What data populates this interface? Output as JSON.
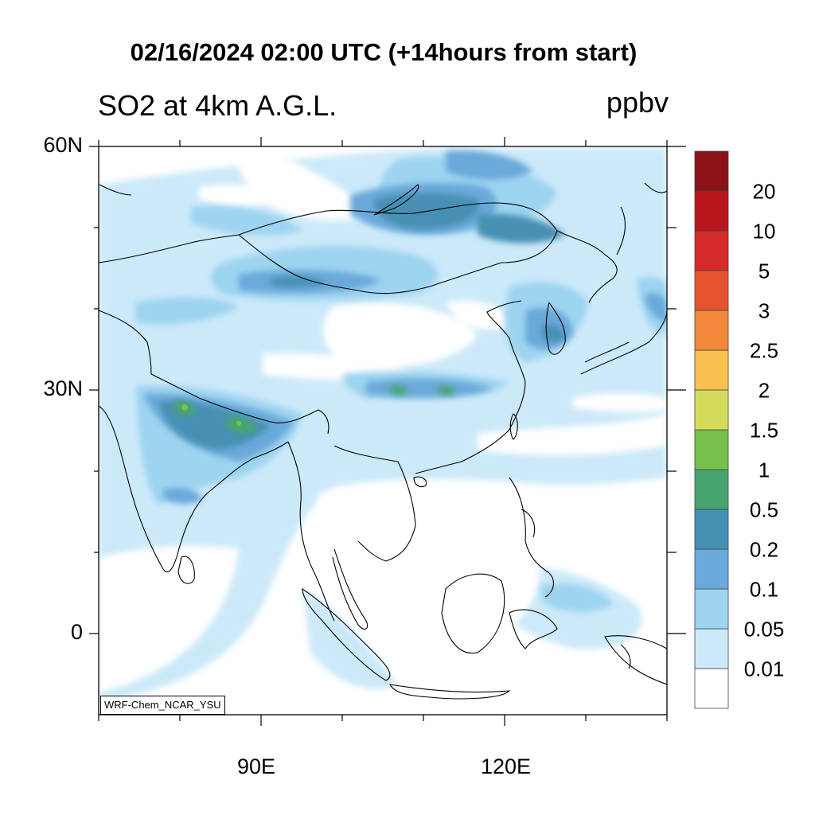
{
  "title": "02/16/2024 02:00 UTC (+14hours from start)",
  "subtitle": "SO2 at 4km A.G.L.",
  "units": "ppbv",
  "credit": "WRF-Chem_NCAR_YSU",
  "lat_ticks": [
    {
      "value": 60,
      "label": "60N"
    },
    {
      "value": 30,
      "label": "30N"
    },
    {
      "value": 0,
      "label": "0"
    }
  ],
  "lon_ticks": [
    {
      "value": 90,
      "label": "90E"
    },
    {
      "value": 120,
      "label": "120E"
    }
  ],
  "map_extent": {
    "lon_min": 70,
    "lon_max": 140,
    "lat_min": -10,
    "lat_max": 60
  },
  "colorbar": {
    "labels": [
      "0.01",
      "0.05",
      "0.1",
      "0.2",
      "0.5",
      "1",
      "1.5",
      "2",
      "2.5",
      "3",
      "5",
      "10",
      "20"
    ],
    "colors": [
      "#ffffff",
      "#cce9f9",
      "#9dd4f0",
      "#6aa9da",
      "#4690b4",
      "#48a46e",
      "#77c04b",
      "#d3dc5a",
      "#f8c150",
      "#f3883a",
      "#e6542f",
      "#d42a2a",
      "#b8161d",
      "#8b1317"
    ]
  }
}
